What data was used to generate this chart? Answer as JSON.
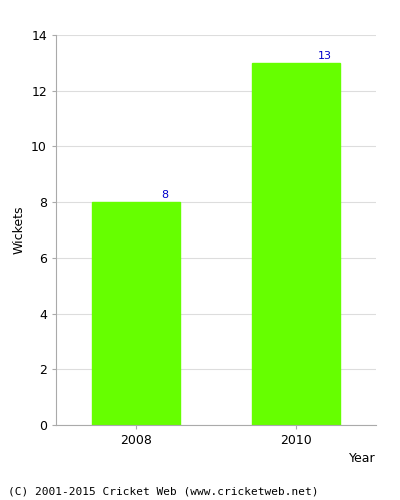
{
  "categories": [
    "2008",
    "2010"
  ],
  "values": [
    8,
    13
  ],
  "bar_color": "#66ff00",
  "bar_edge_color": "#66ff00",
  "label_color": "#0000cc",
  "label_fontsize": 8,
  "xlabel": "Year",
  "ylabel": "Wickets",
  "ylim": [
    0,
    14
  ],
  "yticks": [
    0,
    2,
    4,
    6,
    8,
    10,
    12,
    14
  ],
  "grid_color": "#dddddd",
  "background_color": "#ffffff",
  "footer_text": "(C) 2001-2015 Cricket Web (www.cricketweb.net)",
  "footer_fontsize": 8,
  "axis_fontsize": 9,
  "tick_fontsize": 9,
  "bar_width": 0.55
}
